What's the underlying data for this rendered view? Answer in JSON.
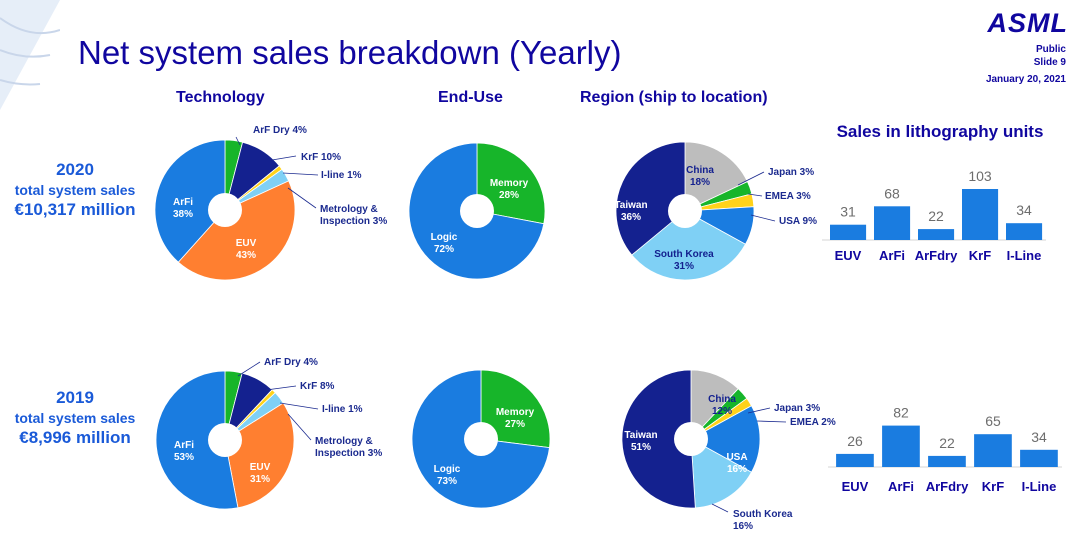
{
  "brand": {
    "logo_text": "ASML",
    "classification": "Public",
    "slide": "Slide 9",
    "date": "January 20, 2021"
  },
  "title": "Net system sales breakdown (Yearly)",
  "column_headers": {
    "technology": "Technology",
    "end_use": "End-Use",
    "region": "Region (ship to location)"
  },
  "years": [
    {
      "year": "2020",
      "label": "total system sales",
      "amount": "€10,317 million"
    },
    {
      "year": "2019",
      "label": "total system sales",
      "amount": "€8,996 million"
    }
  ],
  "colors": {
    "euv": "#ff7f30",
    "arfi": "#1a7ce0",
    "arfdry": "#17b52a",
    "krf": "#14218f",
    "iline": "#ffd21a",
    "metrology": "#7fd0f5",
    "logic": "#1a7ce0",
    "memory": "#17b52a",
    "taiwan": "#14218f",
    "china": "#bdbdbd",
    "japan": "#17b52a",
    "emea": "#ffd21a",
    "usa": "#1a7ce0",
    "south_korea": "#7fd0f5",
    "bar": "#1a7ce0",
    "title": "#10069f",
    "year_text": "#1a5ad8"
  },
  "chart_data": [
    {
      "type": "pie",
      "group": "Technology",
      "year": "2020",
      "slices": [
        {
          "label": "ArF Dry",
          "value": 4,
          "text": "ArF Dry 4%",
          "color": "arfdry"
        },
        {
          "label": "KrF",
          "value": 10,
          "text": "KrF 10%",
          "color": "krf"
        },
        {
          "label": "I-line",
          "value": 1,
          "text": "I-line 1%",
          "color": "iline"
        },
        {
          "label": "Metrology & Inspection",
          "value": 3,
          "text": "Metrology & Inspection 3%",
          "color": "metrology"
        },
        {
          "label": "EUV",
          "value": 43,
          "text": "EUV 43%",
          "color": "euv"
        },
        {
          "label": "ArFi",
          "value": 38,
          "text": "ArFi 38%",
          "color": "arfi"
        }
      ]
    },
    {
      "type": "pie",
      "group": "End-Use",
      "year": "2020",
      "slices": [
        {
          "label": "Memory",
          "value": 28,
          "text": "Memory 28%",
          "color": "memory"
        },
        {
          "label": "Logic",
          "value": 72,
          "text": "Logic 72%",
          "color": "logic"
        }
      ]
    },
    {
      "type": "pie",
      "group": "Region (ship to location)",
      "year": "2020",
      "slices": [
        {
          "label": "China",
          "value": 18,
          "text": "China 18%",
          "color": "china"
        },
        {
          "label": "Japan",
          "value": 3,
          "text": "Japan 3%",
          "color": "japan"
        },
        {
          "label": "EMEA",
          "value": 3,
          "text": "EMEA 3%",
          "color": "emea"
        },
        {
          "label": "USA",
          "value": 9,
          "text": "USA 9%",
          "color": "usa"
        },
        {
          "label": "South Korea",
          "value": 31,
          "text": "South Korea 31%",
          "color": "south_korea"
        },
        {
          "label": "Taiwan",
          "value": 36,
          "text": "Taiwan 36%",
          "color": "taiwan"
        }
      ]
    },
    {
      "type": "bar",
      "title": "Sales in lithography units",
      "year": "2020",
      "categories": [
        "EUV",
        "ArFi",
        "ArFdry",
        "KrF",
        "I-Line"
      ],
      "values": [
        31,
        68,
        22,
        103,
        34
      ]
    },
    {
      "type": "pie",
      "group": "Technology",
      "year": "2019",
      "slices": [
        {
          "label": "ArF Dry",
          "value": 4,
          "text": "ArF Dry 4%",
          "color": "arfdry"
        },
        {
          "label": "KrF",
          "value": 8,
          "text": "KrF 8%",
          "color": "krf"
        },
        {
          "label": "I-line",
          "value": 1,
          "text": "I-line 1%",
          "color": "iline"
        },
        {
          "label": "Metrology & Inspection",
          "value": 3,
          "text": "Metrology & Inspection 3%",
          "color": "metrology"
        },
        {
          "label": "EUV",
          "value": 31,
          "text": "EUV 31%",
          "color": "euv"
        },
        {
          "label": "ArFi",
          "value": 53,
          "text": "ArFi 53%",
          "color": "arfi"
        }
      ]
    },
    {
      "type": "pie",
      "group": "End-Use",
      "year": "2019",
      "slices": [
        {
          "label": "Memory",
          "value": 27,
          "text": "Memory 27%",
          "color": "memory"
        },
        {
          "label": "Logic",
          "value": 73,
          "text": "Logic 73%",
          "color": "logic"
        }
      ]
    },
    {
      "type": "pie",
      "group": "Region (ship to location)",
      "year": "2019",
      "slices": [
        {
          "label": "China",
          "value": 12,
          "text": "China 12%",
          "color": "china"
        },
        {
          "label": "Japan",
          "value": 3,
          "text": "Japan 3%",
          "color": "japan"
        },
        {
          "label": "EMEA",
          "value": 2,
          "text": "EMEA 2%",
          "color": "emea"
        },
        {
          "label": "USA",
          "value": 16,
          "text": "USA 16%",
          "color": "usa"
        },
        {
          "label": "South Korea",
          "value": 16,
          "text": "South Korea 16%",
          "color": "south_korea"
        },
        {
          "label": "Taiwan",
          "value": 51,
          "text": "Taiwan 51%",
          "color": "taiwan"
        }
      ]
    },
    {
      "type": "bar",
      "year": "2019",
      "categories": [
        "EUV",
        "ArFi",
        "ArFdry",
        "KrF",
        "I-Line"
      ],
      "values": [
        26,
        82,
        22,
        65,
        34
      ]
    }
  ]
}
